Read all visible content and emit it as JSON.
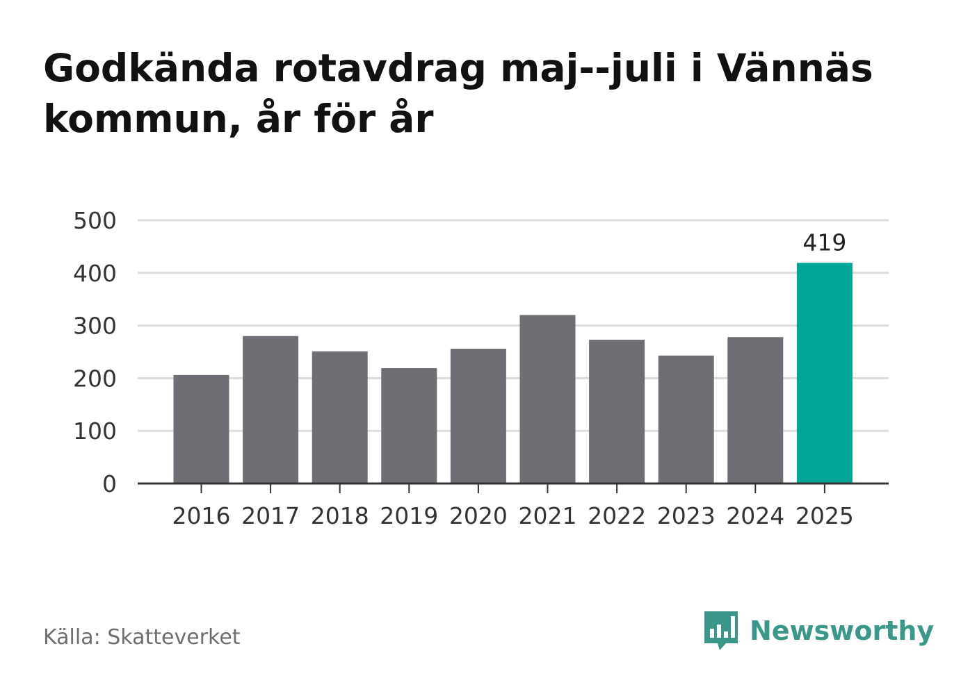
{
  "title": "Godkända rotavdrag maj--juli i Vännäs kommun, år för år",
  "source": "Källa: Skatteverket",
  "brand": {
    "name": "Newsworthy",
    "icon": "bar-chart-speech-bubble-icon"
  },
  "colors": {
    "bar": "#6f6e74",
    "highlight": "#00a598",
    "brand": "#3a978a",
    "grid": "#dcdcdc",
    "axis": "#333333"
  },
  "chart_data": {
    "type": "bar",
    "title": "Godkända rotavdrag maj--juli i Vännäs kommun, år för år",
    "xlabel": "",
    "ylabel": "",
    "categories": [
      "2016",
      "2017",
      "2018",
      "2019",
      "2020",
      "2021",
      "2022",
      "2023",
      "2024",
      "2025"
    ],
    "values": [
      206,
      280,
      251,
      219,
      256,
      320,
      273,
      243,
      278,
      419
    ],
    "highlight_index": 9,
    "data_labels": [
      {
        "index": 9,
        "text": "419"
      }
    ],
    "ylim": [
      0,
      500
    ],
    "yticks": [
      0,
      100,
      200,
      300,
      400,
      500
    ],
    "grid": true
  }
}
